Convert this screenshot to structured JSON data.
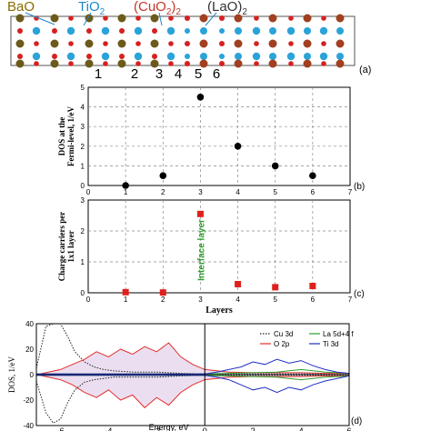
{
  "panel_a": {
    "labels": [
      {
        "text": "BaO",
        "color": "#8a6a00"
      },
      {
        "text": "TiO",
        "sub": "2",
        "color": "#1e88c8"
      },
      {
        "text": "(CuO",
        "sub": "2",
        "tail": ")",
        "sub2": "2",
        "color": "#c0392b"
      },
      {
        "text": "(LaO)",
        "sub": "2",
        "color": "#333333"
      }
    ],
    "layer_numbers": [
      "1",
      "2",
      "3",
      "4",
      "5",
      "6"
    ],
    "tag": "(a)",
    "colors": {
      "ba": "#6b5a1a",
      "ti": "#2aa3d8",
      "o": "#d62020",
      "la": "#a04020"
    }
  },
  "chart_data": [
    {
      "type": "scatter",
      "title": "",
      "xlabel": "",
      "ylabel": "DOS at the Fermi-level, 1/eV",
      "x": [
        1,
        2,
        3,
        4,
        5,
        6
      ],
      "y": [
        0,
        0.5,
        4.5,
        2,
        1,
        0.5
      ],
      "xlim": [
        0,
        7
      ],
      "ylim": [
        0,
        5
      ],
      "xticks": [
        "0",
        "1",
        "2",
        "3",
        "4",
        "5",
        "6",
        "7"
      ],
      "yticks": [
        "0",
        "1",
        "2",
        "3",
        "4",
        "5"
      ],
      "grid": "dashed",
      "marker": "circle",
      "color": "#000000",
      "tag": "(b)"
    },
    {
      "type": "scatter",
      "title": "",
      "xlabel": "Layers",
      "ylabel": "Charge carriers per 1x1 layer",
      "x": [
        1,
        2,
        3,
        4,
        5,
        6
      ],
      "y": [
        0.02,
        0.01,
        2.55,
        0.28,
        0.18,
        0.22
      ],
      "xlim": [
        0,
        7
      ],
      "ylim": [
        0,
        3
      ],
      "xticks": [
        "0",
        "1",
        "2",
        "3",
        "4",
        "5",
        "6",
        "7"
      ],
      "yticks": [
        "0",
        "1",
        "2",
        "3"
      ],
      "grid": "dashed",
      "marker": "square",
      "color": "#e0201c",
      "annotation": "Interface layer",
      "annotation_color": "#2ca02c",
      "tag": "(c)"
    },
    {
      "type": "line",
      "title": "",
      "xlabel": "Energy, eV",
      "ylabel": "DOS, 1/eV",
      "xlim": [
        -7,
        6
      ],
      "ylim": [
        -40,
        40
      ],
      "xticks": [
        "-6",
        "-4",
        "-2",
        "0",
        "2",
        "4",
        "6"
      ],
      "yticks": [
        "40",
        "20",
        "0",
        "-20",
        "-40"
      ],
      "fermi_level": 0,
      "legend_position": "top-right",
      "series": [
        {
          "name": "Cu 3d",
          "color": "#222222",
          "style": "dotted",
          "x": [
            -7,
            -6.6,
            -6.3,
            -6.0,
            -5.7,
            -5.4,
            -5.0,
            -4.6,
            -4.2,
            -3.8,
            -3.0,
            -2.0,
            -1.0,
            0,
            1,
            2,
            3,
            4,
            5,
            6
          ],
          "up": [
            5,
            38,
            40,
            40,
            30,
            18,
            10,
            6,
            4,
            3,
            2,
            2,
            1,
            0.5,
            0.5,
            0.5,
            0.5,
            0.5,
            0.5,
            0.5
          ],
          "down": [
            -5,
            -30,
            -38,
            -35,
            -22,
            -12,
            -6,
            -4,
            -3,
            -2,
            -2,
            -2,
            -1,
            -0.5,
            -0.5,
            -0.5,
            -0.5,
            -0.5,
            -0.5,
            -0.5
          ]
        },
        {
          "name": "O 2p",
          "color": "#e0302c",
          "style": "solid",
          "x": [
            -7,
            -6.5,
            -6.0,
            -5.5,
            -5.0,
            -4.5,
            -4.0,
            -3.5,
            -3.0,
            -2.5,
            -2.0,
            -1.5,
            -1.0,
            -0.5,
            0,
            0.5,
            1,
            2,
            3,
            4,
            5,
            6
          ],
          "up": [
            0,
            2,
            4,
            8,
            12,
            18,
            14,
            20,
            16,
            22,
            18,
            25,
            14,
            8,
            4,
            3,
            2,
            1.5,
            1.5,
            1.5,
            1,
            1
          ],
          "down": [
            0,
            -2,
            -4,
            -8,
            -14,
            -18,
            -12,
            -20,
            -16,
            -26,
            -18,
            -24,
            -14,
            -8,
            -4,
            -3,
            -2,
            -1.5,
            -1.5,
            -1.5,
            -1,
            -1
          ]
        },
        {
          "name": "La 5d+4 f",
          "color": "#2ca02c",
          "style": "solid",
          "x": [
            -7,
            -5,
            -3,
            -1,
            0,
            1,
            2,
            3,
            3.5,
            4,
            4.5,
            5,
            5.5,
            6
          ],
          "up": [
            0.5,
            0.5,
            0.5,
            0.5,
            0.5,
            1,
            1.5,
            2,
            3,
            4,
            3,
            2,
            1.5,
            1
          ],
          "down": [
            -0.5,
            -0.5,
            -0.5,
            -0.5,
            -0.5,
            -1,
            -1.5,
            -2,
            -3,
            -4,
            -3,
            -2,
            -1.5,
            -1
          ]
        },
        {
          "name": "Ti 3d",
          "color": "#2030c0",
          "style": "solid",
          "x": [
            -7,
            -5,
            -3,
            -1,
            0,
            0.5,
            1,
            1.5,
            2,
            2.5,
            3,
            3.5,
            4,
            4.5,
            5,
            5.5,
            6
          ],
          "up": [
            0.5,
            0.5,
            0.5,
            0.5,
            0.5,
            2,
            4,
            6,
            10,
            8,
            12,
            9,
            11,
            7,
            4,
            2,
            1
          ],
          "down": [
            -0.5,
            -0.5,
            -0.5,
            -0.5,
            -0.5,
            -2,
            -4,
            -8,
            -12,
            -10,
            -14,
            -10,
            -12,
            -8,
            -5,
            -3,
            -1
          ]
        }
      ],
      "tag": "(d)"
    }
  ]
}
